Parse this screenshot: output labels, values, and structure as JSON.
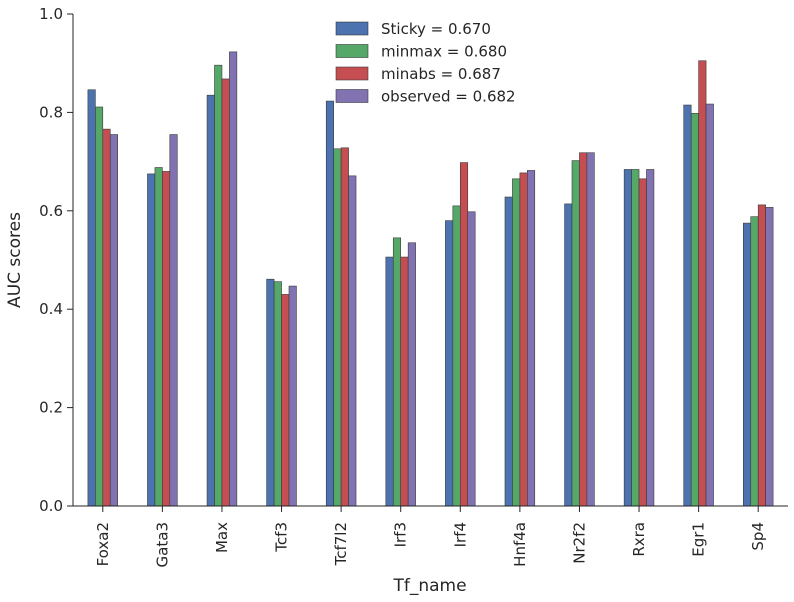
{
  "chart_data": {
    "type": "bar",
    "xlabel": "Tf_name",
    "ylabel": "AUC scores",
    "ylim": [
      0,
      1
    ],
    "yticks": [
      "0.0",
      "0.2",
      "0.4",
      "0.6",
      "0.8",
      "1.0"
    ],
    "grid": false,
    "legend_position": "top-center",
    "categories": [
      "Foxa2",
      "Gata3",
      "Max",
      "Tcf3",
      "Tcf7l2",
      "Irf3",
      "Irf4",
      "Hnf4a",
      "Nr2f2",
      "Rxra",
      "Egr1",
      "Sp4"
    ],
    "series": [
      {
        "name": "Sticky = 0.670",
        "color": "#4c72b0",
        "values": [
          0.846,
          0.675,
          0.835,
          0.461,
          0.823,
          0.506,
          0.58,
          0.628,
          0.614,
          0.684,
          0.815,
          0.575
        ]
      },
      {
        "name": "minmax = 0.680",
        "color": "#55a868",
        "values": [
          0.811,
          0.688,
          0.896,
          0.456,
          0.726,
          0.545,
          0.61,
          0.665,
          0.702,
          0.684,
          0.798,
          0.588
        ]
      },
      {
        "name": "minabs = 0.687",
        "color": "#c44e52",
        "values": [
          0.766,
          0.68,
          0.868,
          0.43,
          0.728,
          0.506,
          0.698,
          0.677,
          0.718,
          0.665,
          0.905,
          0.612
        ]
      },
      {
        "name": "observed = 0.682",
        "color": "#8172b2",
        "values": [
          0.755,
          0.755,
          0.923,
          0.447,
          0.671,
          0.535,
          0.598,
          0.682,
          0.718,
          0.684,
          0.817,
          0.607
        ]
      }
    ]
  }
}
